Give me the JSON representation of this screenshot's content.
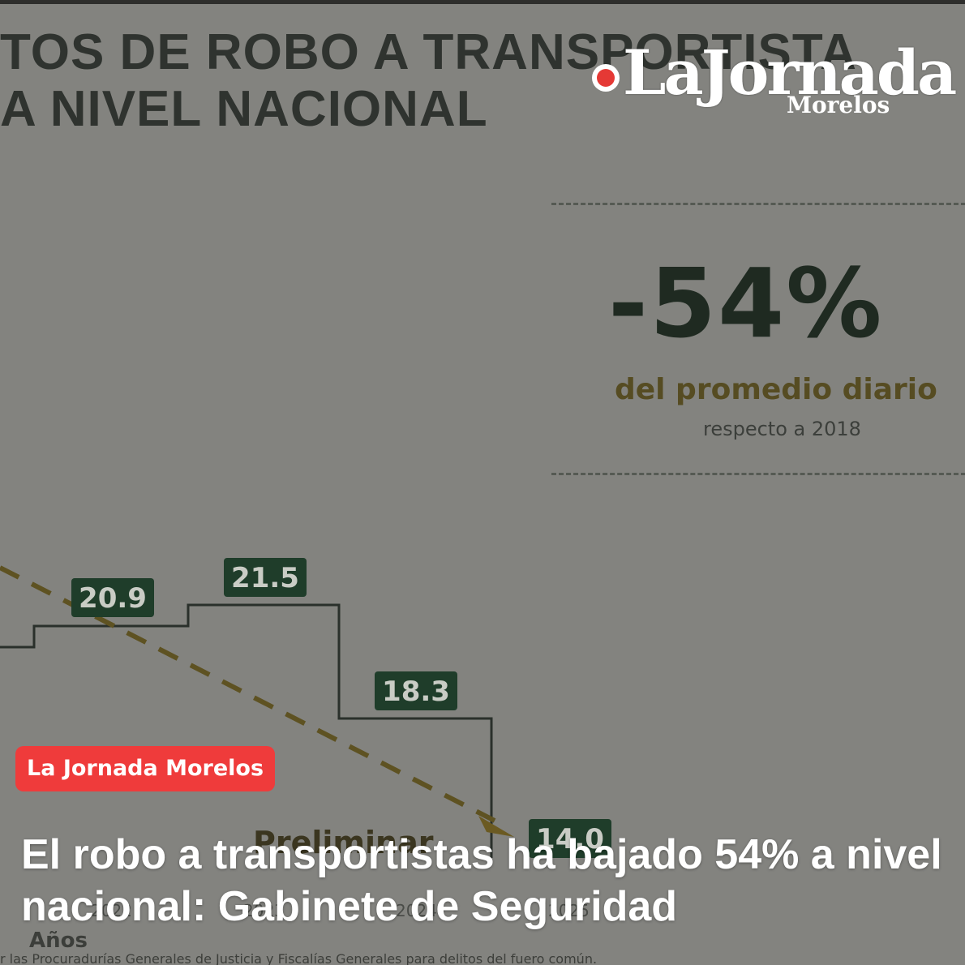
{
  "background": {
    "title_lines": [
      "TOS DE ROBO A TRANSPORTISTA",
      "A NIVEL NACIONAL"
    ],
    "stat": {
      "value": "-54%",
      "label": "del promedio diario",
      "sublabel": "respecto a 2018"
    },
    "chart": {
      "value_labels": [
        "20.9",
        "21.5",
        "18.3",
        "14.0"
      ],
      "partial_text": "Preliminar",
      "axis_title": "Años",
      "tick_labels": [
        "2022",
        "2023",
        "2024",
        "2025"
      ],
      "source_note": "r las Procuradurías Generales de Justicia y Fiscalías Generales para delitos del fuero común."
    }
  },
  "logo": {
    "name": "LaJornada",
    "sub": "Morelos"
  },
  "badge": {
    "label": "La Jornada Morelos"
  },
  "headline": {
    "text": "El robo a transportistas ha bajado 54% a nivel nacional: Gabinete de Seguridad"
  },
  "colors": {
    "badge": "#ef3b3b",
    "overlay": "#83837f",
    "chart_box": "#1f3d2a",
    "trend_line": "#6b5a22"
  },
  "chart_data": {
    "type": "line",
    "categories": [
      "",
      "2022",
      "2023",
      "2024",
      "2025"
    ],
    "values": [
      null,
      20.9,
      21.5,
      18.3,
      14.0
    ],
    "title": "",
    "xlabel": "Años",
    "ylabel": ""
  }
}
